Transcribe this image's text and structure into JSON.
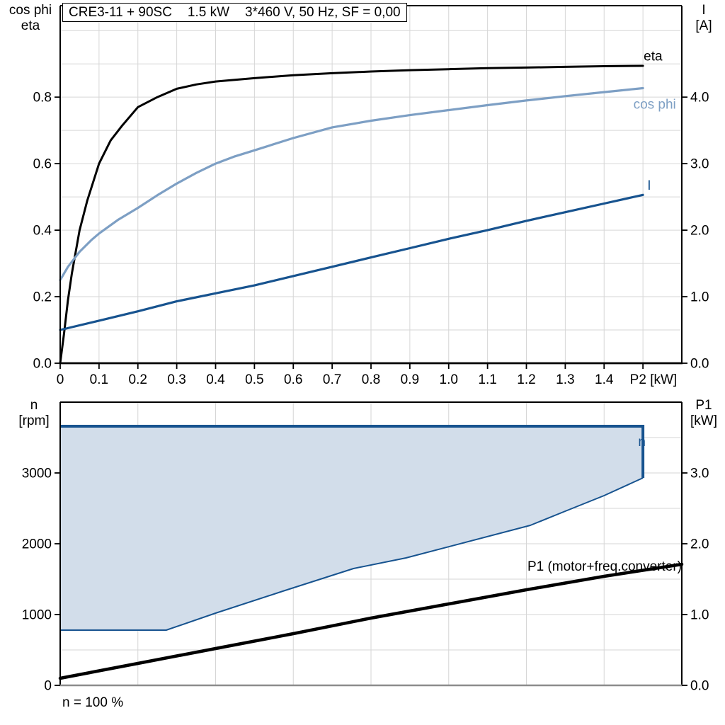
{
  "title_box": {
    "model": "CRE3-11 + 90SC",
    "power": "1.5 kW",
    "conditions": "3*460 V, 50 Hz, SF = 0,00"
  },
  "footer_note": "n = 100 %",
  "colors": {
    "eta": "#000000",
    "cos_phi": "#7d9fc4",
    "current": "#17538f",
    "n_region_fill": "#d2ddea",
    "n_region_stroke": "#17538f",
    "p1": "#000000",
    "grid": "#d6d6d6",
    "frame": "#000000",
    "baseline_gray": "#8c8c8c"
  },
  "chart_data": [
    {
      "type": "line",
      "id": "motor-performance",
      "x_axis": {
        "min": 0,
        "max": 1.6,
        "grid_step": 0.1,
        "tick_values": [
          0,
          0.1,
          0.2,
          0.3,
          0.4,
          0.5,
          0.6,
          0.7,
          0.8,
          0.9,
          1.0,
          1.1,
          1.2,
          1.3,
          1.4,
          1.5
        ],
        "tick_labels": [
          "0",
          "0.1",
          "0.2",
          "0.3",
          "0.4",
          "0.5",
          "0.6",
          "0.7",
          "0.8",
          "0.9",
          "1.0",
          "1.1",
          "1.2",
          "1.3",
          "1.4",
          ""
        ],
        "unit_label": "P2 [kW]",
        "unit_label_at": 1.527
      },
      "y_left": {
        "corner_label": [
          "cos phi",
          "eta"
        ],
        "min": 0,
        "max": 1.075,
        "grid_step": 0.1,
        "tick_values": [
          0,
          0.2,
          0.4,
          0.6,
          0.8
        ],
        "tick_labels": [
          "0.0",
          "0.2",
          "0.4",
          "0.6",
          "0.8"
        ]
      },
      "y_right": {
        "corner_label": [
          "I",
          "[A]"
        ],
        "min": 0,
        "max": 5.375,
        "tick_values": [
          0,
          1,
          2,
          3,
          4
        ],
        "tick_labels": [
          "0.0",
          "1.0",
          "2.0",
          "3.0",
          "4.0"
        ]
      },
      "series": [
        {
          "name": "eta",
          "axis": "left",
          "color": "#000000",
          "width": 3,
          "label": {
            "text": "eta",
            "x": 1.55,
            "y": 0.91,
            "anchor": "end",
            "color": "#000000"
          },
          "x": [
            0,
            0.01,
            0.02,
            0.03,
            0.05,
            0.07,
            0.1,
            0.13,
            0.16,
            0.2,
            0.25,
            0.3,
            0.35,
            0.4,
            0.5,
            0.6,
            0.7,
            0.8,
            0.9,
            1.0,
            1.1,
            1.2,
            1.3,
            1.4,
            1.5
          ],
          "y": [
            0.0,
            0.09,
            0.19,
            0.27,
            0.4,
            0.49,
            0.6,
            0.67,
            0.715,
            0.77,
            0.8,
            0.825,
            0.838,
            0.847,
            0.857,
            0.866,
            0.872,
            0.877,
            0.881,
            0.884,
            0.887,
            0.889,
            0.891,
            0.893,
            0.894
          ]
        },
        {
          "name": "cos phi",
          "axis": "left",
          "color": "#7d9fc4",
          "width": 3.2,
          "label": {
            "text": "cos phi",
            "x": 1.585,
            "y": 0.765,
            "anchor": "end",
            "color": "#7d9fc4"
          },
          "x": [
            0,
            0.02,
            0.05,
            0.08,
            0.1,
            0.15,
            0.2,
            0.25,
            0.3,
            0.35,
            0.4,
            0.45,
            0.5,
            0.6,
            0.7,
            0.8,
            0.9,
            1.0,
            1.1,
            1.2,
            1.3,
            1.4,
            1.5
          ],
          "y": [
            0.25,
            0.29,
            0.335,
            0.37,
            0.39,
            0.432,
            0.467,
            0.505,
            0.54,
            0.572,
            0.6,
            0.622,
            0.64,
            0.677,
            0.709,
            0.729,
            0.746,
            0.761,
            0.776,
            0.79,
            0.803,
            0.815,
            0.827
          ]
        },
        {
          "name": "I",
          "axis": "right",
          "color": "#17538f",
          "width": 3.2,
          "label": {
            "text": "I",
            "x": 1.516,
            "y": 2.61,
            "anchor": "middle",
            "color": "#17538f"
          },
          "x": [
            0,
            0.1,
            0.2,
            0.3,
            0.4,
            0.5,
            0.6,
            0.7,
            0.8,
            0.9,
            1.0,
            1.1,
            1.2,
            1.3,
            1.4,
            1.5
          ],
          "y": [
            0.5,
            0.64,
            0.78,
            0.93,
            1.05,
            1.17,
            1.31,
            1.45,
            1.59,
            1.73,
            1.87,
            2.0,
            2.14,
            2.27,
            2.4,
            2.53
          ]
        }
      ]
    },
    {
      "type": "line",
      "id": "speed-and-input-power",
      "x_axis": {
        "min": 0,
        "max": 1.6,
        "grid_step": 0.2,
        "tick_values": [],
        "tick_labels": []
      },
      "y_left": {
        "corner_label": [
          "n",
          "[rpm]"
        ],
        "min": 0,
        "max": 4000,
        "grid_step": 500,
        "tick_values": [
          0,
          1000,
          2000,
          3000
        ],
        "tick_labels": [
          "0",
          "1000",
          "2000",
          "3000"
        ]
      },
      "y_right": {
        "corner_label": [
          "P1",
          "[kW]"
        ],
        "min": 0,
        "max": 4.0,
        "tick_values": [
          0,
          1,
          2,
          3
        ],
        "tick_labels": [
          "0.0",
          "1.0",
          "2.0",
          "3.0"
        ]
      },
      "region": {
        "name": "n-operating-range",
        "axis": "left",
        "fill": "#d2ddea",
        "stroke": "#17538f",
        "label": {
          "text": "n",
          "x": 1.507,
          "y": 3380,
          "anchor": "end",
          "color": "#17538f"
        },
        "upper": [
          [
            0,
            3660
          ],
          [
            1.5,
            3660
          ],
          [
            1.5,
            2930
          ]
        ],
        "lower": [
          [
            1.5,
            2930
          ],
          [
            1.4,
            2680
          ],
          [
            1.3,
            2460
          ],
          [
            1.21,
            2260
          ],
          [
            0.89,
            1800
          ],
          [
            0.755,
            1650
          ],
          [
            0.573,
            1330
          ],
          [
            0.4,
            1020
          ],
          [
            0.273,
            780
          ],
          [
            0,
            780
          ]
        ]
      },
      "series": [
        {
          "name": "P1 (motor+freq.converter)",
          "axis": "right",
          "color": "#000000",
          "width": 4.5,
          "label": {
            "text": "P1 (motor+freq.converter)",
            "x": 1.6,
            "y": 1.62,
            "anchor": "end",
            "color": "#000000"
          },
          "x": [
            0,
            0.2,
            0.4,
            0.6,
            0.8,
            1.0,
            1.2,
            1.4,
            1.6
          ],
          "y": [
            0.1,
            0.31,
            0.52,
            0.73,
            0.95,
            1.15,
            1.35,
            1.54,
            1.71
          ]
        }
      ]
    }
  ]
}
